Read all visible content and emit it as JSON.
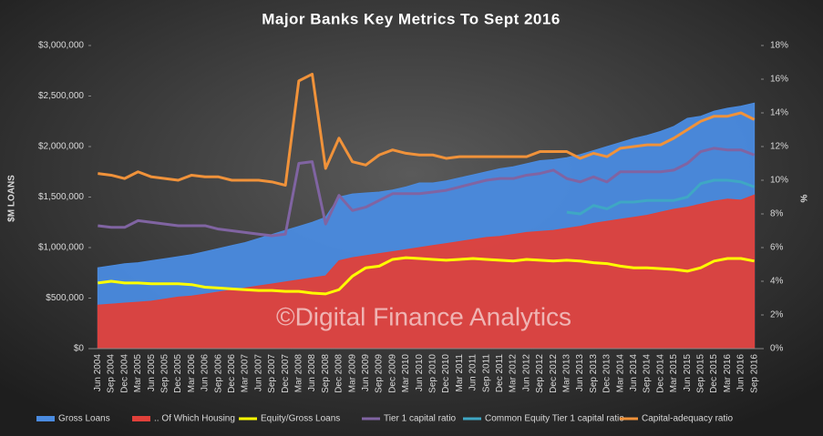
{
  "chart_data": {
    "type": "area-line",
    "title": "Major Banks Key Metrics To Sept 2016",
    "watermark": "©Digital Finance Analytics",
    "ylabel": "$M LOANS",
    "y2label": "%",
    "categories": [
      "Jun 2004",
      "Sep 2004",
      "Dec 2004",
      "Mar 2005",
      "Jun 2005",
      "Sep 2005",
      "Dec 2005",
      "Mar 2006",
      "Jun 2006",
      "Sep 2006",
      "Dec 2006",
      "Mar 2007",
      "Jun 2007",
      "Sep 2007",
      "Dec 2007",
      "Mar 2008",
      "Jun 2008",
      "Sep 2008",
      "Dec 2008",
      "Mar 2009",
      "Jun 2009",
      "Sep 2009",
      "Dec 2009",
      "Mar 2010",
      "Jun 2010",
      "Sep 2010",
      "Dec 2010",
      "Mar 2011",
      "Jun 2011",
      "Sep 2011",
      "Dec 2011",
      "Mar 2012",
      "Jun 2012",
      "Sep 2012",
      "Dec 2012",
      "Mar 2013",
      "Jun 2013",
      "Sep 2013",
      "Dec 2013",
      "Mar 2014",
      "Jun 2014",
      "Sep 2014",
      "Dec 2014",
      "Mar 2015",
      "Jun 2015",
      "Sep 2015",
      "Dec 2015",
      "Mar 2016",
      "Jun 2016",
      "Sep 2016"
    ],
    "ylim": [
      0,
      3000000
    ],
    "yticks": [
      {
        "value": 0,
        "label": "$0"
      },
      {
        "value": 500000,
        "label": "$500,000"
      },
      {
        "value": 1000000,
        "label": "$1,000,000"
      },
      {
        "value": 1500000,
        "label": "$1,500,000"
      },
      {
        "value": 2000000,
        "label": "$2,000,000"
      },
      {
        "value": 2500000,
        "label": "$2,500,000"
      },
      {
        "value": 3000000,
        "label": "$3,000,000"
      }
    ],
    "y2lim": [
      0,
      18
    ],
    "y2ticks": [
      {
        "value": 0,
        "label": "0%"
      },
      {
        "value": 2,
        "label": "2%"
      },
      {
        "value": 4,
        "label": "4%"
      },
      {
        "value": 6,
        "label": "6%"
      },
      {
        "value": 8,
        "label": "8%"
      },
      {
        "value": 10,
        "label": "10%"
      },
      {
        "value": 12,
        "label": "12%"
      },
      {
        "value": 14,
        "label": "14%"
      },
      {
        "value": 16,
        "label": "16%"
      },
      {
        "value": 18,
        "label": "18%"
      }
    ],
    "series": [
      {
        "name": "Gross Loans",
        "kind": "area",
        "color": "#4a8be0",
        "values": [
          800000,
          820000,
          840000,
          850000,
          870000,
          890000,
          910000,
          930000,
          960000,
          990000,
          1020000,
          1050000,
          1090000,
          1130000,
          1170000,
          1210000,
          1250000,
          1300000,
          1500000,
          1530000,
          1540000,
          1550000,
          1570000,
          1600000,
          1640000,
          1640000,
          1660000,
          1690000,
          1720000,
          1750000,
          1780000,
          1800000,
          1830000,
          1860000,
          1870000,
          1890000,
          1920000,
          1960000,
          2000000,
          2040000,
          2080000,
          2110000,
          2150000,
          2200000,
          2280000,
          2300000,
          2350000,
          2380000,
          2400000,
          2430000
        ]
      },
      {
        "name": ".. Of Which Housing",
        "kind": "area",
        "color": "#e0403a",
        "values": [
          430000,
          440000,
          450000,
          460000,
          470000,
          490000,
          510000,
          520000,
          540000,
          560000,
          580000,
          600000,
          620000,
          640000,
          660000,
          680000,
          700000,
          720000,
          870000,
          900000,
          920000,
          940000,
          960000,
          980000,
          1000000,
          1020000,
          1040000,
          1060000,
          1080000,
          1100000,
          1110000,
          1130000,
          1150000,
          1160000,
          1170000,
          1190000,
          1210000,
          1240000,
          1260000,
          1280000,
          1300000,
          1320000,
          1350000,
          1380000,
          1400000,
          1430000,
          1460000,
          1480000,
          1470000,
          1520000
        ]
      },
      {
        "name": "Equity/Gross Loans",
        "kind": "line",
        "axis": "y2",
        "color": "#ffff00",
        "values": [
          3.9,
          4.0,
          3.9,
          3.9,
          3.85,
          3.85,
          3.85,
          3.8,
          3.65,
          3.6,
          3.55,
          3.5,
          3.45,
          3.45,
          3.4,
          3.4,
          3.3,
          3.25,
          3.5,
          4.3,
          4.8,
          4.9,
          5.3,
          5.4,
          5.35,
          5.3,
          5.25,
          5.3,
          5.35,
          5.3,
          5.25,
          5.2,
          5.3,
          5.25,
          5.2,
          5.25,
          5.2,
          5.1,
          5.05,
          4.9,
          4.8,
          4.8,
          4.75,
          4.7,
          4.6,
          4.8,
          5.2,
          5.35,
          5.35,
          5.2
        ]
      },
      {
        "name": "Tier 1 capital ratio",
        "kind": "line",
        "axis": "y2",
        "color": "#8064a2",
        "values": [
          7.3,
          7.2,
          7.2,
          7.6,
          7.5,
          7.4,
          7.3,
          7.3,
          7.3,
          7.1,
          7.0,
          6.9,
          6.8,
          6.7,
          6.8,
          11.0,
          11.1,
          7.4,
          9.1,
          8.2,
          8.4,
          8.8,
          9.2,
          9.2,
          9.2,
          9.3,
          9.4,
          9.6,
          9.8,
          10.0,
          10.1,
          10.1,
          10.3,
          10.4,
          10.6,
          10.1,
          9.9,
          10.2,
          9.9,
          10.5,
          10.5,
          10.5,
          10.5,
          10.6,
          11.0,
          11.7,
          11.9,
          11.8,
          11.8,
          11.5
        ]
      },
      {
        "name": "Common Equity Tier 1 capital ratio",
        "kind": "line",
        "axis": "y2",
        "color": "#3fa7c4",
        "values": [
          null,
          null,
          null,
          null,
          null,
          null,
          null,
          null,
          null,
          null,
          null,
          null,
          null,
          null,
          null,
          null,
          null,
          null,
          null,
          null,
          null,
          null,
          null,
          null,
          null,
          null,
          null,
          null,
          null,
          null,
          null,
          null,
          null,
          null,
          null,
          8.1,
          8.0,
          8.5,
          8.3,
          8.7,
          8.7,
          8.8,
          8.8,
          8.8,
          9.0,
          9.8,
          10.0,
          10.0,
          9.9,
          9.6
        ]
      },
      {
        "name": "Capital-adequacy ratio",
        "kind": "line",
        "axis": "y2",
        "color": "#f0923a",
        "values": [
          10.4,
          10.3,
          10.1,
          10.5,
          10.2,
          10.1,
          10.0,
          10.3,
          10.2,
          10.2,
          10.0,
          10.0,
          10.0,
          9.9,
          9.7,
          15.9,
          16.3,
          10.7,
          12.5,
          11.1,
          10.9,
          11.5,
          11.8,
          11.6,
          11.5,
          11.5,
          11.3,
          11.4,
          11.4,
          11.4,
          11.4,
          11.4,
          11.4,
          11.7,
          11.7,
          11.7,
          11.3,
          11.6,
          11.4,
          11.9,
          12.0,
          12.1,
          12.1,
          12.5,
          13.0,
          13.5,
          13.8,
          13.8,
          14.0,
          13.6
        ]
      }
    ],
    "legend": "bottom"
  }
}
